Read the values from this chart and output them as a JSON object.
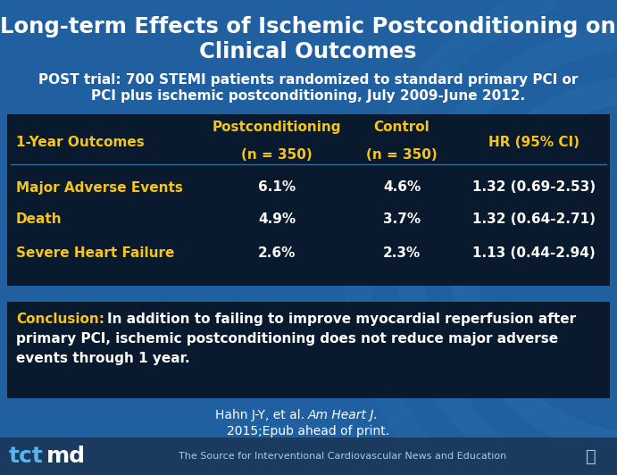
{
  "title_line1": "Long-term Effects of Ischemic Postconditioning on",
  "title_line2": "Clinical Outcomes",
  "subtitle_line1": "POST trial: 700 STEMI patients randomized to standard primary PCI or",
  "subtitle_line2": "PCI plus ischemic postconditioning, July 2009-June 2012.",
  "bg_color": "#2060a0",
  "table_bg": "#0a1a2e",
  "conclusion_bg": "#0a1a2e",
  "footer_bg": "#1a3a60",
  "title_color": "#ffffff",
  "subtitle_color": "#ffffff",
  "yellow": "#f5c518",
  "white": "#ffffff",
  "divider_color": "#3a6a90",
  "col_header1_line1": "Postconditioning",
  "col_header1_line2": "(n = 350)",
  "col_header2_line1": "Control",
  "col_header2_line2": "(n = 350)",
  "col_header3": "HR (95% CI)",
  "row_header": "1-Year Outcomes",
  "rows": [
    {
      "label": "Major Adverse Events",
      "postcond": "6.1%",
      "control": "4.6%",
      "hr": "1.32 (0.69-2.53)"
    },
    {
      "label": "Death",
      "postcond": "4.9%",
      "control": "3.7%",
      "hr": "1.32 (0.64-2.71)"
    },
    {
      "label": "Severe Heart Failure",
      "postcond": "2.6%",
      "control": "2.3%",
      "hr": "1.13 (0.44-2.94)"
    }
  ],
  "conclusion_label": "Conclusion:",
  "conclusion_body": "  In addition to failing to improve myocardial reperfusion after\nprimary PCI, ischemic postconditioning does not reduce major adverse\nevents through 1 year.",
  "cite_normal": "Hahn J-Y, et al. ",
  "cite_italic": "Am Heart J.",
  "cite_line2": "2015;Epub ahead of print.",
  "footer_text": "The Source for Interventional Cardiovascular News and Education",
  "tct_color": "#5ab4e8",
  "md_color": "#ffffff"
}
